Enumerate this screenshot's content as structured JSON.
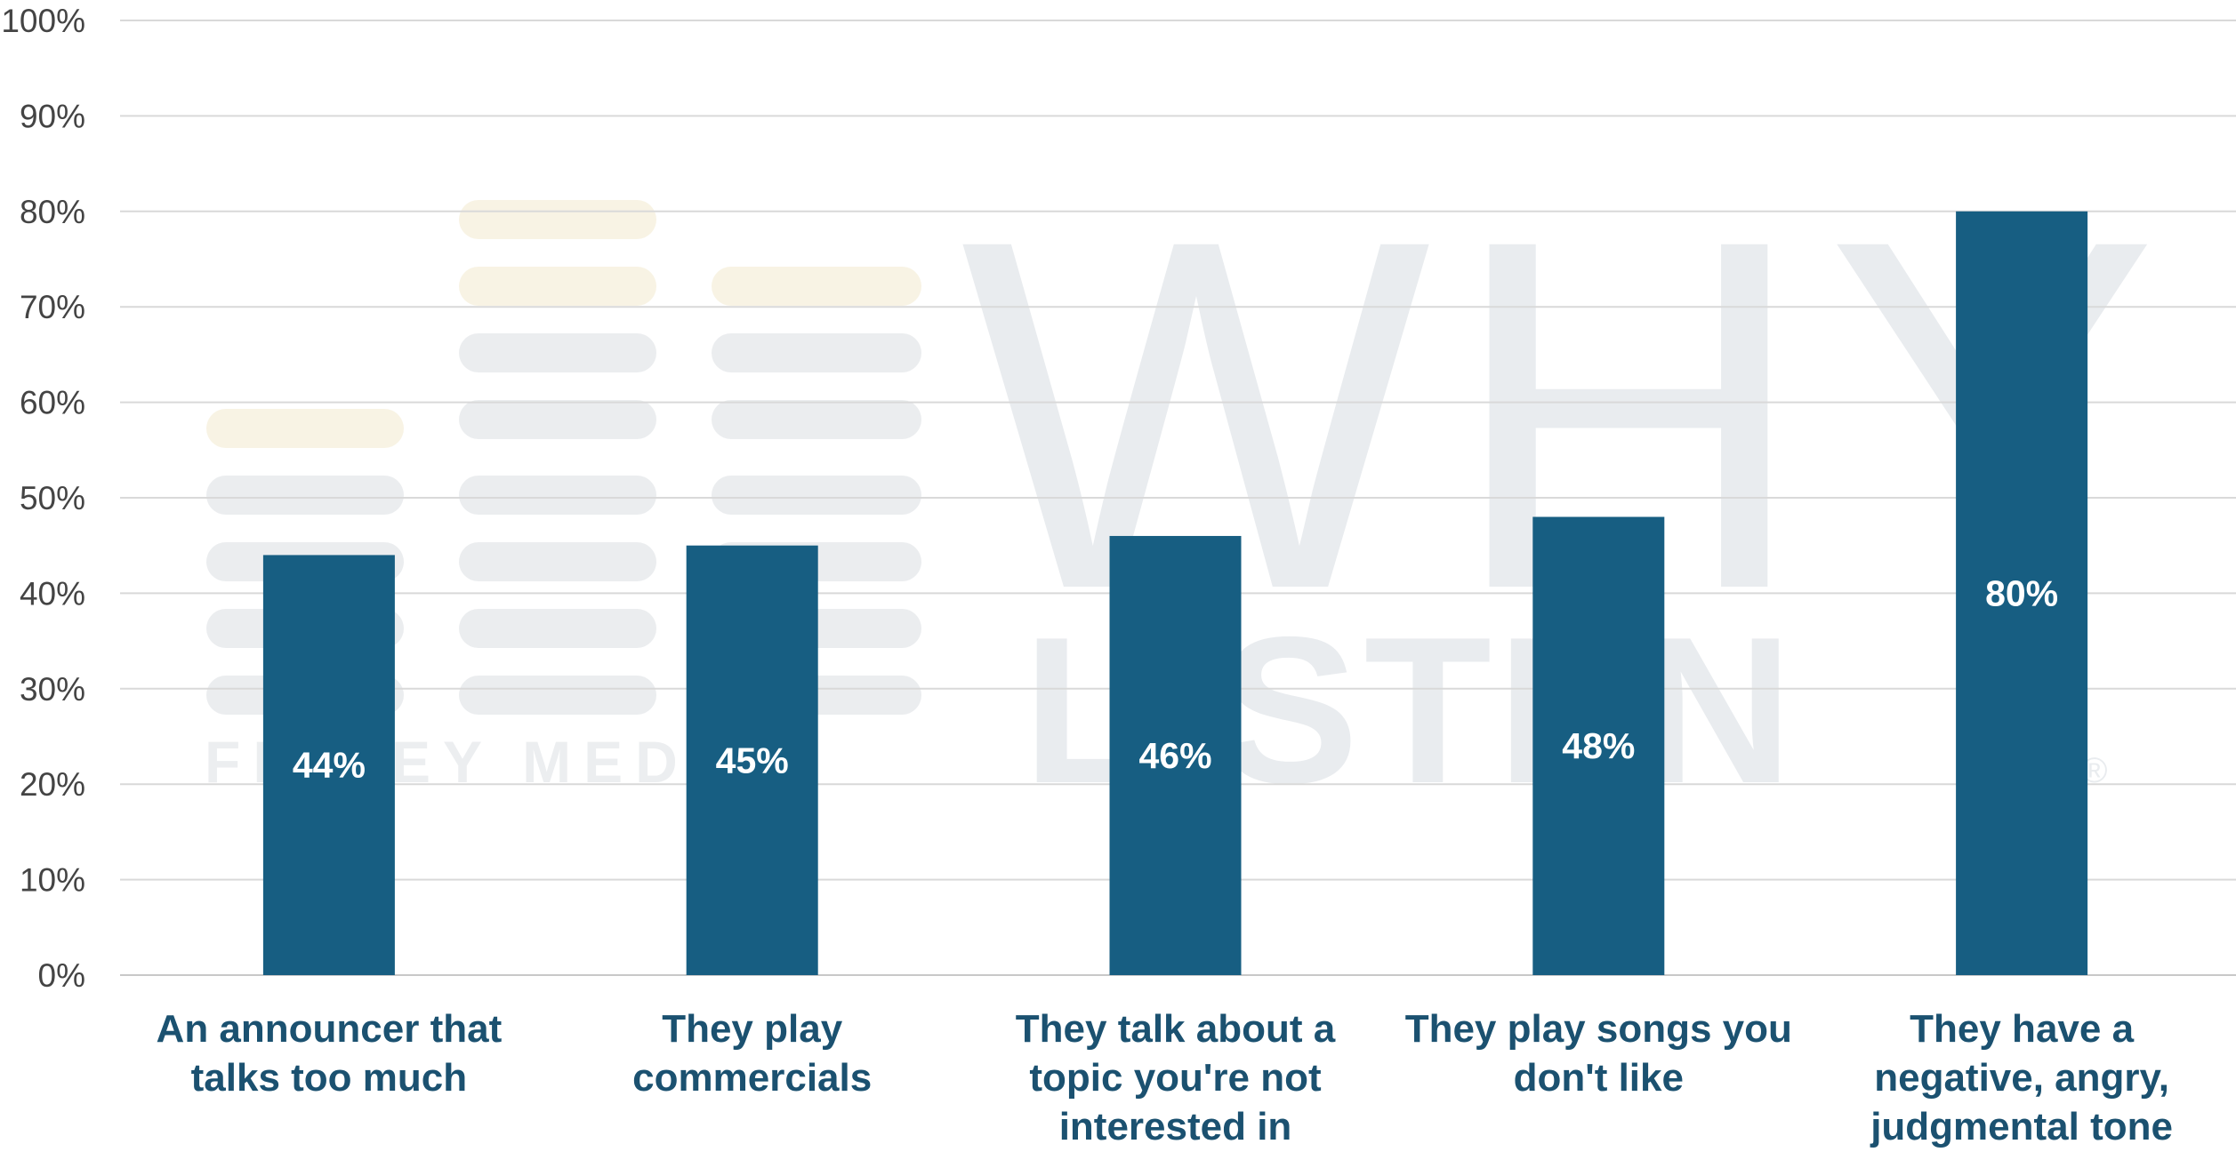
{
  "watermark": {
    "brand_text": "FINNEY MEDIA",
    "logo_text_top": "WHY",
    "logo_text_bottom": "LISTEN",
    "registered": "®"
  },
  "colors": {
    "bar": "#175e82",
    "axis_label": "#1b5170",
    "tick": "#444444",
    "grid": "#d9d9d9",
    "value_label": "#ffffff"
  },
  "chart_data": {
    "type": "bar",
    "title": "",
    "xlabel": "",
    "ylabel": "",
    "ylim": [
      0,
      100
    ],
    "yticks": [
      "0%",
      "10%",
      "20%",
      "30%",
      "40%",
      "50%",
      "60%",
      "70%",
      "80%",
      "90%",
      "100%"
    ],
    "grid": true,
    "categories": [
      [
        "An announcer that",
        "talks too much"
      ],
      [
        "They play",
        "commercials"
      ],
      [
        "They talk about a",
        "topic you're not",
        "interested in"
      ],
      [
        "They play songs you",
        "don't like"
      ],
      [
        "They have a",
        "negative, angry,",
        "judgmental tone"
      ]
    ],
    "values": [
      44,
      45,
      46,
      48,
      80
    ],
    "value_labels": [
      "44%",
      "45%",
      "46%",
      "48%",
      "80%"
    ]
  }
}
